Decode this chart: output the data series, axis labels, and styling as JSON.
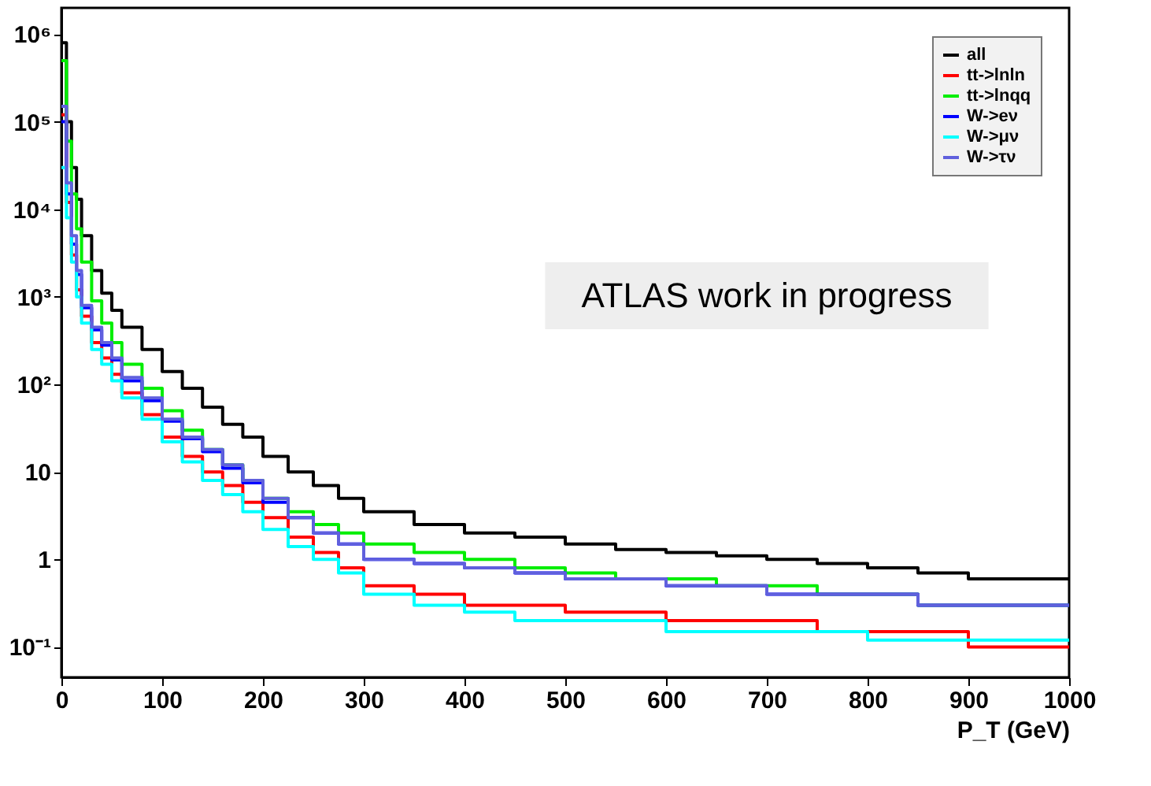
{
  "chart_data": {
    "type": "histogram",
    "xlabel": "P_T (GeV)",
    "bins": [
      0,
      5,
      10,
      15,
      20,
      30,
      40,
      50,
      60,
      80,
      100,
      120,
      140,
      160,
      180,
      200,
      225,
      250,
      275,
      300,
      350,
      400,
      450,
      500,
      550,
      600,
      650,
      700,
      750,
      800,
      850,
      900,
      950,
      1000
    ],
    "series": [
      {
        "name": "all",
        "color": "#000000",
        "values": [
          800000,
          100000,
          30000,
          13000,
          5000,
          2000,
          1100,
          700,
          450,
          250,
          140,
          90,
          55,
          35,
          25,
          15,
          10,
          7,
          5,
          3.5,
          2.5,
          2,
          1.8,
          1.5,
          1.3,
          1.2,
          1.1,
          1,
          0.9,
          0.8,
          0.7,
          0.6,
          0.6
        ]
      },
      {
        "name": "tt->lnln",
        "color": "#ff0000",
        "values": [
          120000,
          12000,
          3000,
          1200,
          600,
          300,
          200,
          130,
          80,
          45,
          25,
          15,
          10,
          7,
          4.5,
          3,
          1.8,
          1.2,
          0.8,
          0.5,
          0.4,
          0.3,
          0.3,
          0.25,
          0.25,
          0.2,
          0.2,
          0.2,
          0.15,
          0.15,
          0.15,
          0.1,
          0.1
        ]
      },
      {
        "name": "tt->lnqq",
        "color": "#00ee00",
        "values": [
          500000,
          60000,
          15000,
          6000,
          2500,
          900,
          500,
          300,
          170,
          90,
          50,
          30,
          18,
          12,
          8,
          5,
          3.5,
          2.5,
          2,
          1.5,
          1.2,
          1,
          0.8,
          0.7,
          0.6,
          0.6,
          0.5,
          0.5,
          0.4,
          0.4,
          0.3,
          0.3,
          0.3
        ]
      },
      {
        "name": "W->eν",
        "color": "#0000ff",
        "values": [
          100000,
          15000,
          4000,
          1800,
          750,
          420,
          280,
          190,
          110,
          65,
          38,
          24,
          17,
          11,
          7.5,
          4.5,
          3,
          2,
          1.5,
          1,
          0.9,
          0.8,
          0.7,
          0.6,
          0.6,
          0.5,
          0.5,
          0.4,
          0.4,
          0.4,
          0.3,
          0.3,
          0.3
        ]
      },
      {
        "name": "W->μν",
        "color": "#00ffff",
        "values": [
          30000,
          8000,
          2500,
          1000,
          500,
          250,
          170,
          110,
          70,
          40,
          22,
          13,
          8,
          5.5,
          3.5,
          2.2,
          1.4,
          1,
          0.7,
          0.4,
          0.3,
          0.25,
          0.2,
          0.2,
          0.2,
          0.15,
          0.15,
          0.15,
          0.15,
          0.12,
          0.12,
          0.12,
          0.12
        ]
      },
      {
        "name": "W->τν",
        "color": "#6060dd",
        "values": [
          150000,
          20000,
          5000,
          2000,
          800,
          450,
          300,
          200,
          120,
          70,
          40,
          25,
          18,
          12,
          8,
          5,
          3,
          2,
          1.5,
          1,
          0.9,
          0.8,
          0.7,
          0.6,
          0.6,
          0.5,
          0.5,
          0.4,
          0.4,
          0.4,
          0.3,
          0.3,
          0.3
        ]
      }
    ],
    "xlim": [
      0,
      1000
    ],
    "xticks": [
      0,
      100,
      200,
      300,
      400,
      500,
      600,
      700,
      800,
      900,
      1000
    ],
    "ylim": [
      0.045,
      2000000
    ],
    "yticks": [
      {
        "value": 0.1,
        "label": "10⁻¹"
      },
      1,
      10,
      {
        "value": 100,
        "label": "10²"
      },
      {
        "value": 1000,
        "label": "10³"
      },
      {
        "value": 10000,
        "label": "10⁴"
      },
      {
        "value": 100000,
        "label": "10⁵"
      },
      {
        "value": 1000000,
        "label": "10⁶"
      }
    ],
    "log": "y",
    "grid": false,
    "legend": "top right",
    "annotations": [
      "ATLAS work in progress"
    ]
  }
}
